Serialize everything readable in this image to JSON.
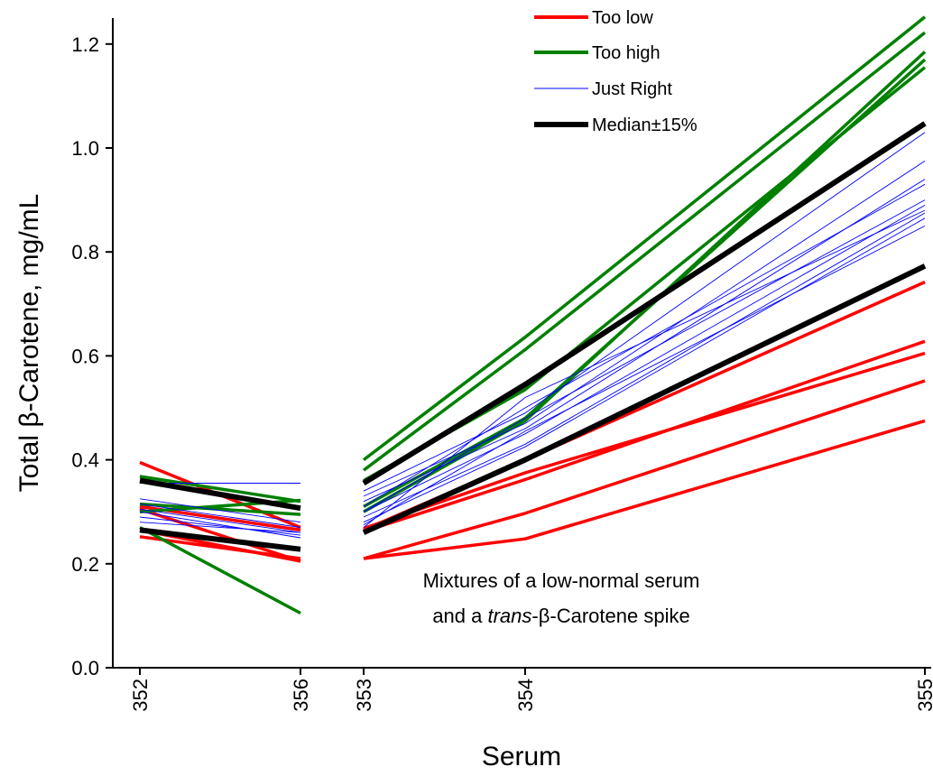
{
  "chart_data": {
    "type": "line",
    "title": "",
    "xlabel": "Serum",
    "ylabel": "Total β-Carotene, mg/mL",
    "ylim": [
      0,
      1.25
    ],
    "yticks": [
      "0.0",
      "0.2",
      "0.4",
      "0.6",
      "0.8",
      "1.0",
      "1.2"
    ],
    "grid": false,
    "legend_position": "top-right",
    "colors": {
      "too_low": "#ff0000",
      "too_high": "#008000",
      "just_right": "#0000ff",
      "median": "#000000"
    },
    "legend": [
      {
        "key": "too_low",
        "label": "Too low"
      },
      {
        "key": "too_high",
        "label": "Too high"
      },
      {
        "key": "just_right",
        "label": "Just Right"
      },
      {
        "key": "median",
        "label": "Median±15%"
      }
    ],
    "annotation": {
      "line1": "Mixtures of a low-normal serum",
      "line2_italic": "trans",
      "line2_rest": "-β-Carotene spike",
      "line2_prefix": "and a "
    },
    "left_panel": {
      "x": [
        352,
        356
      ],
      "series": [
        {
          "group": "too_low",
          "values": [
            0.395,
            0.27
          ]
        },
        {
          "group": "too_low",
          "values": [
            0.31,
            0.265
          ]
        },
        {
          "group": "too_low",
          "values": [
            0.305,
            0.205
          ]
        },
        {
          "group": "too_low",
          "values": [
            0.265,
            0.205
          ]
        },
        {
          "group": "too_low",
          "values": [
            0.252,
            0.21
          ]
        },
        {
          "group": "too_high",
          "values": [
            0.368,
            0.32
          ]
        },
        {
          "group": "too_high",
          "values": [
            0.3,
            0.322
          ]
        },
        {
          "group": "too_high",
          "values": [
            0.315,
            0.295
          ]
        },
        {
          "group": "too_high",
          "values": [
            0.27,
            0.105
          ]
        },
        {
          "group": "just_right",
          "values": [
            0.355,
            0.355
          ]
        },
        {
          "group": "just_right",
          "values": [
            0.325,
            0.28
          ]
        },
        {
          "group": "just_right",
          "values": [
            0.315,
            0.27
          ]
        },
        {
          "group": "just_right",
          "values": [
            0.305,
            0.26
          ]
        },
        {
          "group": "just_right",
          "values": [
            0.3,
            0.25
          ]
        },
        {
          "group": "just_right",
          "values": [
            0.29,
            0.255
          ]
        },
        {
          "group": "just_right",
          "values": [
            0.28,
            0.26
          ]
        },
        {
          "group": "median",
          "values": [
            0.36,
            0.307
          ]
        },
        {
          "group": "median",
          "values": [
            0.265,
            0.228
          ]
        }
      ]
    },
    "right_panel": {
      "x": [
        353,
        354,
        355
      ],
      "series": [
        {
          "group": "too_low",
          "values": [
            0.21,
            0.248,
            0.475
          ]
        },
        {
          "group": "too_low",
          "values": [
            0.21,
            0.297,
            0.552
          ]
        },
        {
          "group": "too_low",
          "values": [
            0.262,
            0.362,
            0.628
          ]
        },
        {
          "group": "too_low",
          "values": [
            0.268,
            0.375,
            0.605
          ]
        },
        {
          "group": "too_low",
          "values": [
            0.265,
            0.4,
            0.742
          ]
        },
        {
          "group": "too_high",
          "values": [
            0.4,
            0.636,
            1.252
          ]
        },
        {
          "group": "too_high",
          "values": [
            0.38,
            0.612,
            1.222
          ]
        },
        {
          "group": "too_high",
          "values": [
            0.36,
            0.535,
            1.155
          ]
        },
        {
          "group": "too_high",
          "values": [
            0.3,
            0.475,
            1.185
          ]
        },
        {
          "group": "too_high",
          "values": [
            0.31,
            0.48,
            1.17
          ]
        },
        {
          "group": "just_right",
          "values": [
            0.34,
            0.49,
            1.03
          ]
        },
        {
          "group": "just_right",
          "values": [
            0.33,
            0.47,
            0.975
          ]
        },
        {
          "group": "just_right",
          "values": [
            0.32,
            0.46,
            0.94
          ]
        },
        {
          "group": "just_right",
          "values": [
            0.31,
            0.5,
            0.93
          ]
        },
        {
          "group": "just_right",
          "values": [
            0.3,
            0.48,
            0.9
          ]
        },
        {
          "group": "just_right",
          "values": [
            0.3,
            0.45,
            0.89
          ]
        },
        {
          "group": "just_right",
          "values": [
            0.29,
            0.43,
            0.875
          ]
        },
        {
          "group": "just_right",
          "values": [
            0.28,
            0.425,
            0.865
          ]
        },
        {
          "group": "just_right",
          "values": [
            0.275,
            0.455,
            0.85
          ]
        },
        {
          "group": "just_right",
          "values": [
            0.27,
            0.52,
            0.88
          ]
        },
        {
          "group": "median",
          "values": [
            0.355,
            0.545,
            1.047
          ]
        },
        {
          "group": "median",
          "values": [
            0.26,
            0.4,
            0.773
          ]
        }
      ]
    },
    "x_tick_labels": [
      "352",
      "356",
      "353",
      "354",
      "355"
    ]
  }
}
